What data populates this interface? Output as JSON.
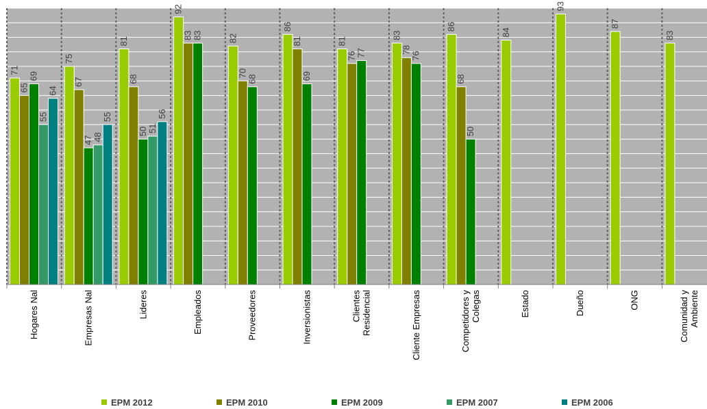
{
  "chart_data": {
    "type": "bar",
    "title": "",
    "xlabel": "",
    "ylabel": "",
    "ylim": [
      0,
      95
    ],
    "grid": true,
    "legend_position": "bottom",
    "categories": [
      [
        "Hogares Nal"
      ],
      [
        "Empresas Nal"
      ],
      [
        "Lideres"
      ],
      [
        "Empleados"
      ],
      [
        "Proveedores"
      ],
      [
        "Inversionistas"
      ],
      [
        "Clientes",
        "Residencial"
      ],
      [
        "Cliente Empresas"
      ],
      [
        "Competidores y",
        "Colegas"
      ],
      [
        "Estado"
      ],
      [
        "Dueño"
      ],
      [
        "ONG"
      ],
      [
        "Comunidad y",
        "Ambiente"
      ]
    ],
    "series": [
      {
        "name": "EPM 2012",
        "color": "#99cc00",
        "values": [
          71,
          75,
          81,
          92,
          82,
          86,
          81,
          83,
          86,
          84,
          93,
          87,
          83
        ]
      },
      {
        "name": "EPM 2010",
        "color": "#808000",
        "values": [
          65,
          67,
          68,
          83,
          70,
          81,
          76,
          78,
          68,
          null,
          null,
          null,
          null
        ]
      },
      {
        "name": "EPM 2009",
        "color": "#008000",
        "values": [
          69,
          47,
          50,
          83,
          68,
          69,
          77,
          76,
          50,
          null,
          null,
          null,
          null
        ]
      },
      {
        "name": "EPM 2007",
        "color": "#339966",
        "values": [
          55,
          48,
          51,
          null,
          null,
          null,
          null,
          null,
          null,
          null,
          null,
          null,
          null
        ]
      },
      {
        "name": "EPM 2006",
        "color": "#008080",
        "values": [
          64,
          55,
          56,
          null,
          null,
          null,
          null,
          null,
          null,
          null,
          null,
          null,
          null
        ]
      }
    ]
  }
}
